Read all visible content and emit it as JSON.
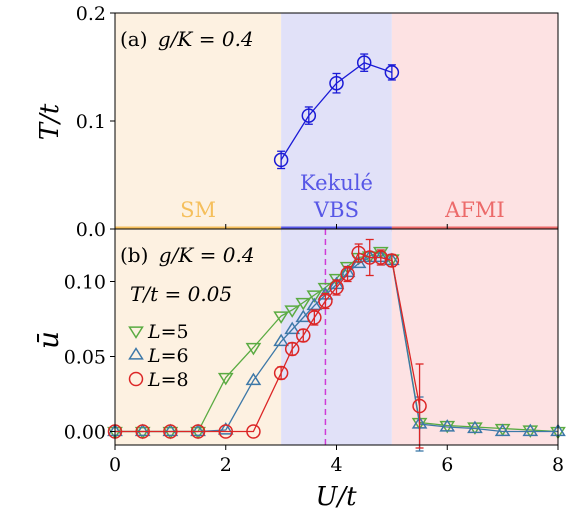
{
  "colors": {
    "sm_bg": "#fdf1e1",
    "vbs_bg": "#e1e1f8",
    "afmi_bg": "#fde2e3",
    "sm_line": "#f5bf5c",
    "vbs_line": "#5757e6",
    "afmi_line": "#ec6a6a",
    "blue": "#1a1ad6",
    "green": "#5aab42",
    "steel": "#3d78a8",
    "red": "#dc2626",
    "magenta": "#cf3cd6"
  },
  "chart_data": [
    {
      "id": "a",
      "type": "line",
      "panel_label": "(a)",
      "param_label": "g/K = 0.4",
      "ylabel": "T/t",
      "xlim": [
        0,
        8
      ],
      "ylim": [
        0,
        0.2
      ],
      "yticks": [
        "0.0",
        "0.1",
        "0.2"
      ],
      "ytick_values": [
        0,
        0.1,
        0.2
      ],
      "regions": [
        {
          "label": "SM",
          "from": 0,
          "to": 3,
          "color": "#f5bf5c"
        },
        {
          "label": "Kekulé",
          "label2": "VBS",
          "from": 3,
          "to": 5,
          "color": "#5757e6"
        },
        {
          "label": "AFMI",
          "from": 5,
          "to": 8,
          "color": "#ec6a6a"
        }
      ],
      "series": [
        {
          "color": "#1a1ad6",
          "marker": "circle",
          "x": [
            3.0,
            3.5,
            4.0,
            4.5,
            5.0
          ],
          "y": [
            0.064,
            0.105,
            0.135,
            0.154,
            0.145
          ],
          "err": [
            0.008,
            0.008,
            0.009,
            0.008,
            0.007
          ]
        }
      ]
    },
    {
      "id": "b",
      "type": "line",
      "panel_label": "(b)",
      "param_label": "g/K = 0.4",
      "temp_label": "T/t = 0.05",
      "ylabel": "ū",
      "xlabel": "U/t",
      "xlim": [
        0,
        8
      ],
      "ylim": [
        -0.009,
        0.135
      ],
      "xticks": [
        "0",
        "2",
        "4",
        "6",
        "8"
      ],
      "xtick_values": [
        0,
        2,
        4,
        6,
        8
      ],
      "yticks": [
        "0.00",
        "0.05",
        "0.10"
      ],
      "ytick_values": [
        0,
        0.05,
        0.1
      ],
      "vline_x": 3.8,
      "legend_position": "left",
      "series": [
        {
          "name": "L=5",
          "color": "#5aab42",
          "marker": "triangle-down",
          "x": [
            0,
            0.5,
            1.0,
            1.5,
            2.0,
            2.5,
            3.0,
            3.2,
            3.4,
            3.6,
            3.8,
            4.0,
            4.2,
            4.4,
            4.6,
            4.8,
            5.0,
            5.5,
            6.0,
            6.5,
            7.0,
            7.5,
            8.0
          ],
          "y": [
            0,
            0,
            0,
            0,
            0.036,
            0.056,
            0.077,
            0.081,
            0.086,
            0.091,
            0.096,
            0.102,
            0.11,
            0.116,
            0.117,
            0.12,
            0.115,
            0.006,
            0.004,
            0.003,
            0.002,
            0.001,
            0.0
          ],
          "err": [
            0,
            0,
            0,
            0,
            0,
            0,
            0,
            0,
            0,
            0,
            0,
            0,
            0,
            0,
            0,
            0,
            0,
            0,
            0,
            0,
            0,
            0,
            0
          ]
        },
        {
          "name": "L=6",
          "color": "#3d78a8",
          "marker": "triangle-up",
          "x": [
            0,
            0.5,
            1.0,
            1.5,
            2.0,
            2.5,
            3.0,
            3.2,
            3.4,
            3.6,
            3.8,
            4.0,
            4.2,
            4.4,
            4.6,
            4.8,
            5.0,
            5.5,
            6.0,
            6.5,
            7.0,
            7.5,
            8.0
          ],
          "y": [
            0,
            0,
            0,
            0,
            0.001,
            0.034,
            0.06,
            0.068,
            0.076,
            0.084,
            0.091,
            0.098,
            0.106,
            0.112,
            0.116,
            0.116,
            0.114,
            0.005,
            0.003,
            0.002,
            0.0,
            0.0,
            0.0
          ],
          "err": [
            0,
            0,
            0,
            0,
            0,
            0,
            0,
            0,
            0,
            0,
            0,
            0,
            0,
            0,
            0,
            0,
            0,
            0.018,
            0,
            0,
            0,
            0,
            0
          ]
        },
        {
          "name": "L=8",
          "color": "#dc2626",
          "marker": "circle",
          "x": [
            0,
            0.5,
            1.0,
            1.5,
            2.0,
            2.5,
            3.0,
            3.2,
            3.4,
            3.6,
            3.8,
            4.0,
            4.2,
            4.4,
            4.6,
            4.8,
            5.0,
            5.5
          ],
          "y": [
            0,
            0,
            0,
            0,
            0,
            0.0,
            0.039,
            0.055,
            0.064,
            0.076,
            0.087,
            0.096,
            0.105,
            0.119,
            0.116,
            0.116,
            0.114,
            0.017
          ],
          "err": [
            0,
            0,
            0,
            0,
            0,
            0,
            0.004,
            0.004,
            0.004,
            0.005,
            0.005,
            0.005,
            0.005,
            0.006,
            0.012,
            0.005,
            0.004,
            0.028
          ]
        }
      ]
    }
  ]
}
